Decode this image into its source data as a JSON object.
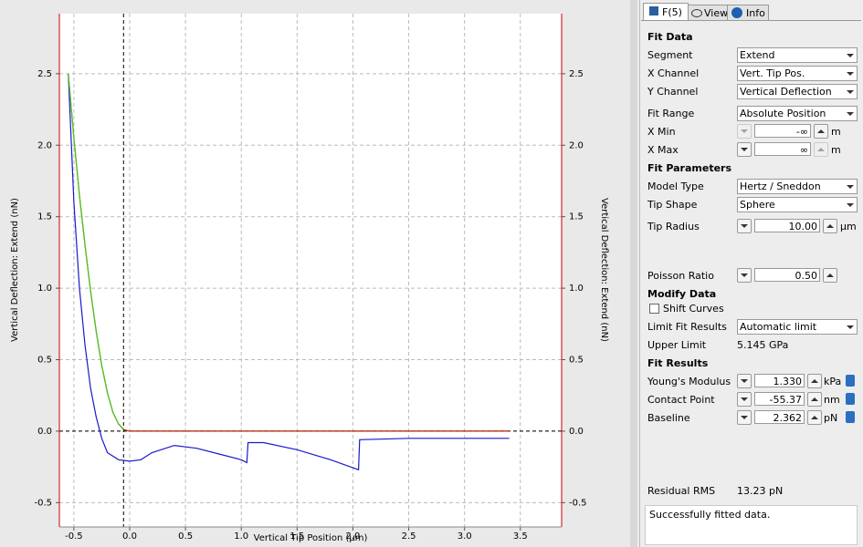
{
  "chart_data": {
    "type": "line",
    "xlabel": "Vertical Tip Position (µm)",
    "ylabel": "Vertical Deflection: Extend (nN)",
    "y2label": "Vertical Deflection: Extend (nN)",
    "xlim": [
      -0.63,
      3.87
    ],
    "ylim": [
      -0.67,
      2.92
    ],
    "y2lim": [
      -0.67,
      2.92
    ],
    "xticks": [
      -0.5,
      {
        "value": 0,
        "label": "0.0"
      },
      0.5,
      {
        "value": 1,
        "label": "1.0"
      },
      1.5,
      {
        "value": 2,
        "label": "2.0"
      },
      2.5,
      {
        "value": 3,
        "label": "3.0"
      },
      3.5
    ],
    "yticks": [
      -0.5,
      {
        "value": 0,
        "label": "0.0"
      },
      0.5,
      {
        "value": 1,
        "label": "1.0"
      },
      1.5,
      {
        "value": 2,
        "label": "2.0"
      },
      2.5
    ],
    "y2ticks": [
      -0.5,
      {
        "value": 0,
        "label": "0.0"
      },
      0.5,
      {
        "value": 1,
        "label": "1.0"
      },
      1.5,
      {
        "value": 2,
        "label": "2.0"
      },
      2.5
    ],
    "grid": true,
    "vlines": [
      -0.055
    ],
    "hlines": [
      0
    ],
    "series": [
      {
        "color": "#1a1acc",
        "x": [
          -0.55,
          -0.5,
          -0.45,
          -0.4,
          -0.35,
          -0.3,
          -0.25,
          -0.2,
          -0.1,
          0,
          0.1,
          0.2,
          0.4,
          0.6,
          0.8,
          1.0,
          1.05,
          1.06,
          1.2,
          1.5,
          1.8,
          2.05,
          2.06,
          2.5,
          3.0,
          3.4
        ],
        "values": [
          2.5,
          1.6,
          1.0,
          0.6,
          0.3,
          0.1,
          -0.05,
          -0.15,
          -0.2,
          -0.21,
          -0.2,
          -0.15,
          -0.1,
          -0.12,
          -0.16,
          -0.2,
          -0.22,
          -0.08,
          -0.08,
          -0.13,
          -0.2,
          -0.27,
          -0.06,
          -0.05,
          -0.05,
          -0.05
        ]
      },
      {
        "color": "#b22000",
        "x": [
          -0.55,
          -0.5,
          -0.45,
          -0.4,
          -0.35,
          -0.3,
          -0.25,
          -0.2,
          -0.15,
          -0.1,
          -0.05,
          0,
          0.5,
          1.0,
          1.5,
          2.0,
          2.5,
          3.0,
          3.4
        ],
        "values": [
          2.5,
          2.05,
          1.65,
          1.3,
          0.98,
          0.7,
          0.46,
          0.27,
          0.13,
          0.05,
          0.01,
          0,
          0,
          0,
          0,
          0,
          0,
          0,
          0
        ]
      },
      {
        "color": "#44cc22",
        "x": [
          -0.55,
          -0.5,
          -0.45,
          -0.4,
          -0.35,
          -0.3,
          -0.25,
          -0.2,
          -0.15,
          -0.1,
          -0.055
        ],
        "values": [
          2.5,
          2.05,
          1.65,
          1.3,
          0.98,
          0.7,
          0.46,
          0.27,
          0.13,
          0.05,
          0.01
        ]
      }
    ]
  },
  "panel": {
    "tabs": [
      "F(5)",
      "View",
      "Info"
    ],
    "fit_data": {
      "title": "Fit Data",
      "segment": [
        "Segment",
        "Extend"
      ],
      "x_channel": [
        "X Channel",
        "Vert. Tip Pos."
      ],
      "y_channel": [
        "Y Channel",
        "Vertical Deflection"
      ],
      "fit_range": [
        "Fit Range",
        "Absolute Position"
      ],
      "x_min": [
        "X Min",
        "-∞",
        "m"
      ],
      "x_max": [
        "X Max",
        "∞",
        "m"
      ]
    },
    "fit_parameters": {
      "title": "Fit Parameters",
      "model_type": [
        "Model Type",
        "Hertz / Sneddon"
      ],
      "tip_shape": [
        "Tip Shape",
        "Sphere"
      ],
      "tip_radius": [
        "Tip Radius",
        "10.00",
        "µm"
      ],
      "poisson_ratio": [
        "Poisson Ratio",
        "0.50"
      ]
    },
    "modify_data": {
      "title": "Modify Data",
      "shift_curves": "Shift Curves",
      "limit_fit_results": [
        "Limit Fit Results",
        "Automatic limit"
      ],
      "upper_limit": [
        "Upper Limit",
        "5.145 GPa"
      ]
    },
    "fit_results": {
      "title": "Fit Results",
      "youngs_modulus": [
        "Young's Modulus",
        "1.330",
        "kPa"
      ],
      "contact_point": [
        "Contact Point",
        "-55.37",
        "nm"
      ],
      "baseline": [
        "Baseline",
        "2.362",
        "pN"
      ]
    },
    "residual_rms": [
      "Residual RMS",
      "13.23 pN"
    ],
    "status": "Successfully fitted data."
  }
}
